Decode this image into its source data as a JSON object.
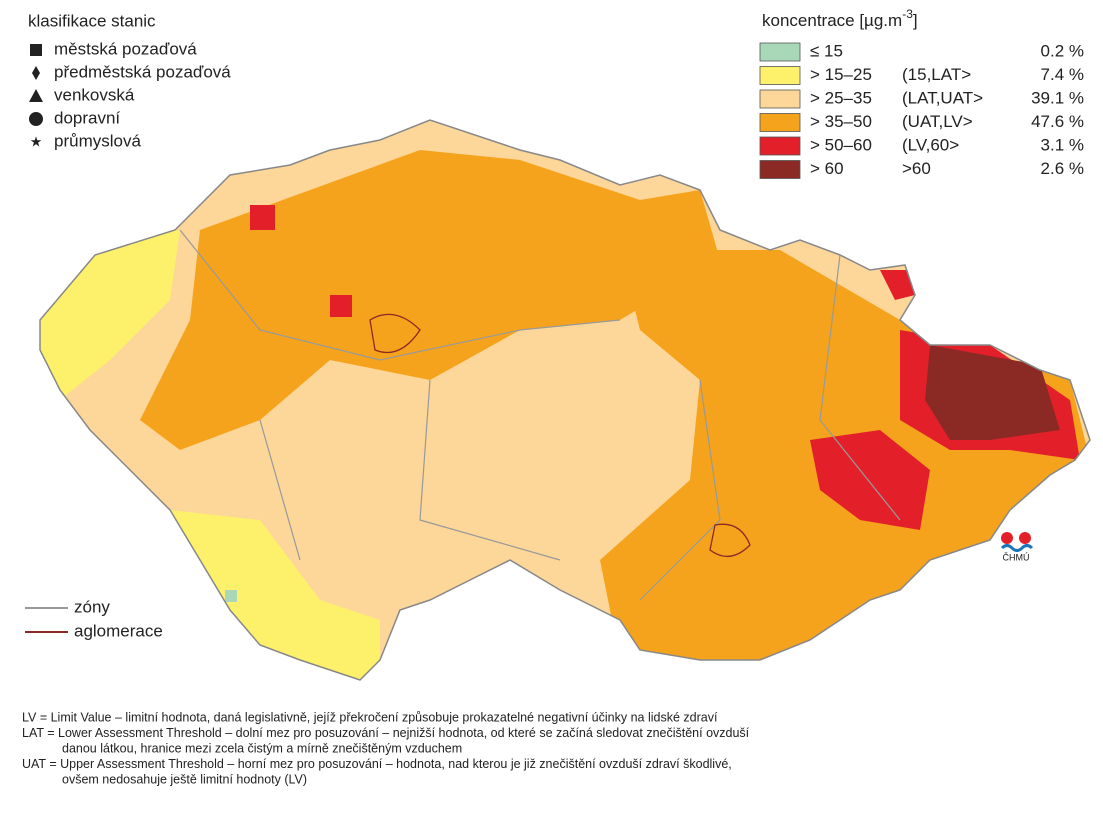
{
  "station_legend": {
    "title": "klasifikace stanic",
    "items": [
      "městská pozaďová",
      "předměstská pozaďová",
      "venkovská",
      "dopravní",
      "průmyslová"
    ]
  },
  "concentration_legend": {
    "title_prefix": "koncentrace [µg.m",
    "title_superscript": "-3",
    "title_suffix": "]",
    "items": [
      {
        "range": "≤ 15",
        "share": "0.2 %"
      },
      {
        "range": "> 15–25",
        "code": "(15,LAT>",
        "share": "7.4 %"
      },
      {
        "range": "> 25–35",
        "code": "(LAT,UAT>",
        "share": "39.1 %"
      },
      {
        "range": "> 35–50",
        "code": "(UAT,LV>",
        "share": "47.6 %"
      },
      {
        "range": "> 50–60",
        "code": "(LV,60>",
        "share": "3.1 %"
      },
      {
        "range": "> 60",
        "code": ">60",
        "share": "2.6 %"
      }
    ]
  },
  "line_legend": [
    "zóny",
    "aglomerace"
  ],
  "logo": "ČHMÚ",
  "footnotes": [
    "LV   = Limit Value – limitní hodnota, daná legislativně, jejíž překročení způsobuje prokazatelné negativní účinky na lidské zdraví",
    "LAT = Lower Assessment Threshold – dolní mez pro posuzování – nejnižší hodnota, od které se začíná sledovat znečištění ovzduší",
    "danou látkou, hranice mezi zcela čistým a mírně znečištěným vzduchem",
    "UAT = Upper Assessment Threshold – horní mez pro posuzování – hodnota, nad kterou je již znečištění ovzduší zdraví škodlivé,",
    "ovšem nedosahuje ještě limitní hodnoty (LV)"
  ]
}
